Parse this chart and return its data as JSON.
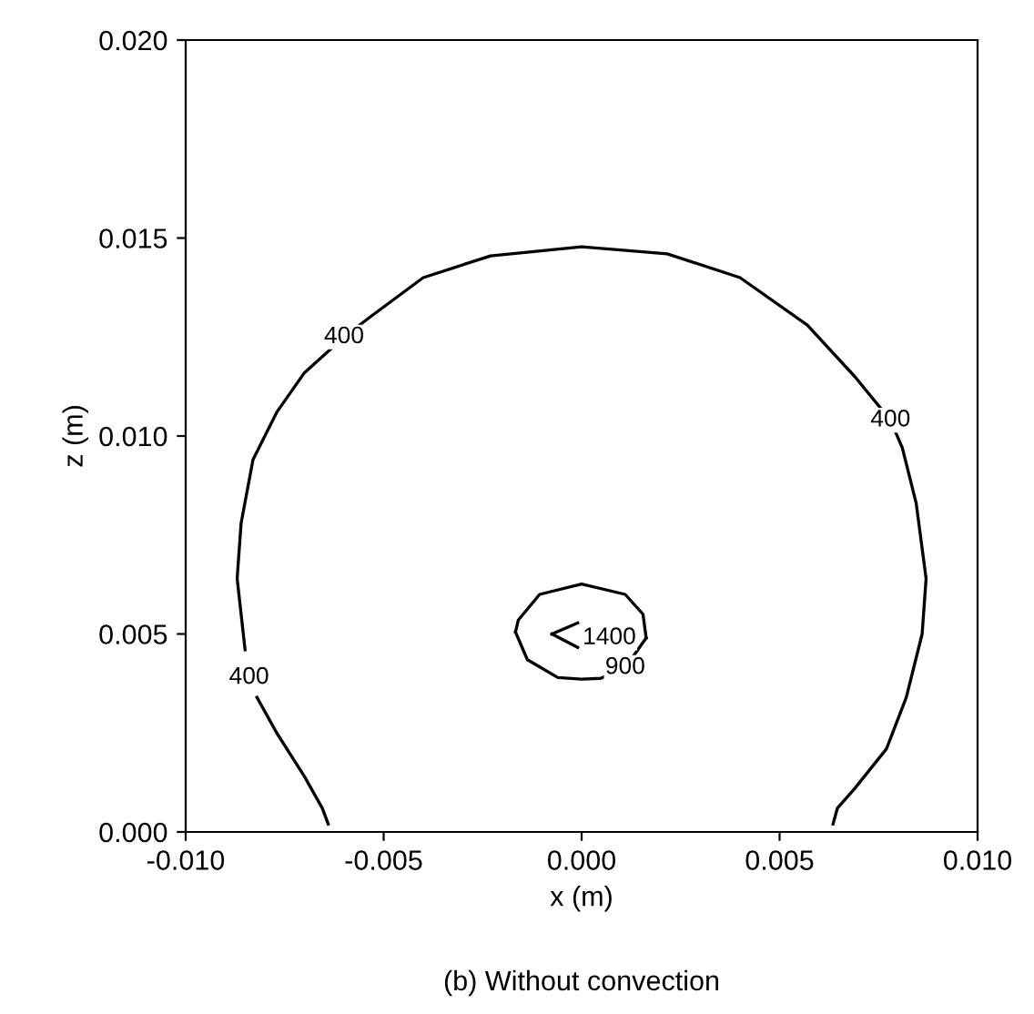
{
  "chart_data": {
    "type": "line",
    "xlabel": "x (m)",
    "ylabel": "z (m)",
    "xlim": [
      -0.01,
      0.01
    ],
    "ylim": [
      0,
      0.02
    ],
    "xticks": [
      {
        "value": -0.01,
        "label": "-0.010"
      },
      {
        "value": -0.005,
        "label": "-0.005"
      },
      {
        "value": 0,
        "label": "0.000"
      },
      {
        "value": 0.005,
        "label": "0.005"
      },
      {
        "value": 0.01,
        "label": "0.010"
      }
    ],
    "yticks": [
      {
        "value": 0,
        "label": "0.000"
      },
      {
        "value": 0.005,
        "label": "0.005"
      },
      {
        "value": 0.01,
        "label": "0.010"
      },
      {
        "value": 0.015,
        "label": "0.015"
      },
      {
        "value": 0.02,
        "label": "0.020"
      }
    ],
    "grid": false,
    "legend": false,
    "marker": "none",
    "line_style": "solid",
    "series": [
      {
        "color": "#000000",
        "x": [
          -0.0064,
          -0.00655,
          -0.007,
          -0.0077,
          -0.0082,
          -0.00834,
          -0.0085,
          -0.0087,
          -0.0086,
          -0.0083,
          -0.0077,
          -0.007,
          -0.006,
          -0.00535,
          -0.004,
          -0.0023,
          0,
          0.00216,
          0.004,
          0.0057,
          0.0069,
          0.0078,
          0.0081,
          0.00845,
          0.0087,
          0.0086,
          0.0082,
          0.0077,
          0.0069,
          0.00646,
          0.00635
        ],
        "values": [
          0.0002,
          0.0006,
          0.0014,
          0.0025,
          0.0034,
          null,
          0.0046,
          0.0064,
          0.0078,
          0.0094,
          0.0106,
          0.0116,
          0.0125,
          0.013,
          0.014,
          0.01455,
          0.01478,
          0.0146,
          0.014,
          0.0128,
          0.0115,
          0.0104,
          0.0097,
          0.0083,
          0.0064,
          0.005,
          0.0034,
          0.0021,
          0.0011,
          0.0006,
          0.0002
        ]
      },
      {
        "color": "#000000",
        "x": [
          -0.00167,
          -0.0016,
          -0.00106,
          0,
          0.0011,
          0.00155,
          0.00163
        ],
        "values": [
          0.00505,
          0.00535,
          0.006,
          0.00626,
          0.006,
          0.0055,
          0.0049
        ]
      },
      {
        "color": "#000000",
        "x": [
          -0.00167,
          -0.00137,
          -0.0006,
          0,
          0.00048,
          0.0011,
          0.00163
        ],
        "values": [
          0.00505,
          0.00435,
          0.0039,
          0.00386,
          0.00388,
          0.00415,
          0.0049
        ]
      },
      {
        "color": "#000000",
        "x": [
          -0.00075,
          -0.0001
        ],
        "values": [
          0.005,
          0.00528
        ]
      },
      {
        "color": "#000000",
        "x": [
          -0.00075,
          -0.0001
        ],
        "values": [
          0.005,
          0.00466
        ]
      }
    ],
    "annotations": [
      {
        "text": "400",
        "x": -0.006,
        "y": 0.0125
      },
      {
        "text": "400",
        "x": 0.0078,
        "y": 0.0104
      },
      {
        "text": "400",
        "x": -0.0084,
        "y": 0.0039
      },
      {
        "text": "1400",
        "x": 0.0007,
        "y": 0.0049
      },
      {
        "text": "900",
        "x": 0.0011,
        "y": 0.00415
      },
      "(b) Without convection"
    ]
  }
}
